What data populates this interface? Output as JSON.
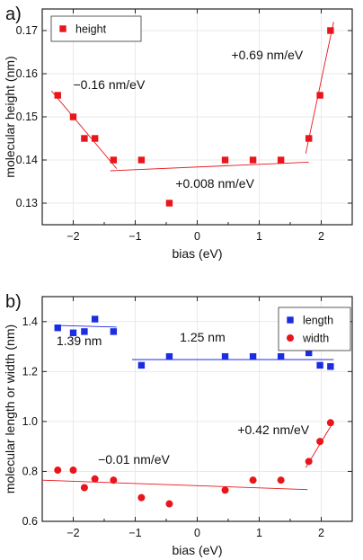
{
  "chart_data": [
    {
      "panel_label": "a)",
      "type": "scatter",
      "xlabel": "bias (eV)",
      "ylabel": "molecular height (nm)",
      "xlim": [
        -2.5,
        2.5
      ],
      "ylim": [
        0.125,
        0.175
      ],
      "xticks": [
        -2,
        -1,
        0,
        1,
        2
      ],
      "yticks": [
        0.13,
        0.14,
        0.15,
        0.16,
        0.17
      ],
      "ytick_labels": [
        "0.13",
        "0.14",
        "0.15",
        "0.16",
        "0.17"
      ],
      "grid": true,
      "legend_position": "top-left",
      "series": [
        {
          "name": "height",
          "marker": "square",
          "color": "#e8151b",
          "x": [
            -2.25,
            -2.0,
            -1.82,
            -1.65,
            -1.35,
            -0.9,
            -0.45,
            0.45,
            0.9,
            1.35,
            1.8,
            1.98,
            2.15
          ],
          "y": [
            0.155,
            0.15,
            0.145,
            0.145,
            0.14,
            0.14,
            0.13,
            0.14,
            0.14,
            0.14,
            0.145,
            0.155,
            0.17
          ]
        }
      ],
      "fits": [
        {
          "x": [
            -2.35,
            -1.3
          ],
          "y": [
            0.156,
            0.138
          ],
          "color": "#e8151b"
        },
        {
          "x": [
            -1.4,
            1.8
          ],
          "y": [
            0.1375,
            0.1395
          ],
          "color": "#e8151b"
        },
        {
          "x": [
            1.75,
            2.2
          ],
          "y": [
            0.1415,
            0.172
          ],
          "color": "#e8151b"
        }
      ],
      "annotations": [
        {
          "text": "−0.16 nm/eV",
          "x": -2.0,
          "y": 0.1565
        },
        {
          "text": "+0.69 nm/eV",
          "x": 0.55,
          "y": 0.1633
        },
        {
          "text": "+0.008 nm/eV",
          "x": -0.35,
          "y": 0.1335
        }
      ]
    },
    {
      "panel_label": "b)",
      "type": "scatter",
      "xlabel": "bias (eV)",
      "ylabel": "molecular length or width (nm)",
      "xlim": [
        -2.5,
        2.5
      ],
      "ylim": [
        0.6,
        1.5
      ],
      "xticks": [
        -2,
        -1,
        0,
        1,
        2
      ],
      "yticks": [
        0.6,
        0.8,
        1.0,
        1.2,
        1.4
      ],
      "ytick_labels": [
        "0.6",
        "0.8",
        "1.0",
        "1.2",
        "1.4"
      ],
      "grid": true,
      "legend_position": "top-right",
      "series": [
        {
          "name": "length",
          "marker": "square",
          "color": "#1a2de0",
          "x": [
            -2.25,
            -2.0,
            -1.82,
            -1.65,
            -1.35,
            -0.9,
            -0.45,
            0.45,
            0.9,
            1.35,
            1.8,
            1.98,
            2.15
          ],
          "y": [
            1.375,
            1.355,
            1.36,
            1.41,
            1.36,
            1.225,
            1.26,
            1.26,
            1.26,
            1.26,
            1.275,
            1.225,
            1.22
          ]
        },
        {
          "name": "width",
          "marker": "circle",
          "color": "#e8151b",
          "x": [
            -2.25,
            -2.0,
            -1.82,
            -1.65,
            -1.35,
            -0.9,
            -0.45,
            0.45,
            0.9,
            1.35,
            1.8,
            1.98,
            2.15
          ],
          "y": [
            0.805,
            0.805,
            0.735,
            0.77,
            0.765,
            0.695,
            0.67,
            0.725,
            0.765,
            0.765,
            0.84,
            0.92,
            0.995
          ]
        }
      ],
      "fits": [
        {
          "x": [
            -2.3,
            -1.3
          ],
          "y": [
            1.385,
            1.378
          ],
          "color": "#1a2de0"
        },
        {
          "x": [
            -1.05,
            2.2
          ],
          "y": [
            1.248,
            1.248
          ],
          "color": "#1a2de0"
        },
        {
          "x": [
            -2.5,
            1.78
          ],
          "y": [
            0.765,
            0.727
          ],
          "color": "#e8151b"
        },
        {
          "x": [
            1.75,
            2.2
          ],
          "y": [
            0.815,
            1.0
          ],
          "color": "#e8151b"
        }
      ],
      "annotations": [
        {
          "text": "1.39 nm",
          "x": -2.27,
          "y": 1.305
        },
        {
          "text": "1.25 nm",
          "x": -0.28,
          "y": 1.32
        },
        {
          "text": "+0.42 nm/eV",
          "x": 0.65,
          "y": 0.95
        },
        {
          "text": "−0.01 nm/eV",
          "x": -1.6,
          "y": 0.83
        }
      ]
    }
  ]
}
